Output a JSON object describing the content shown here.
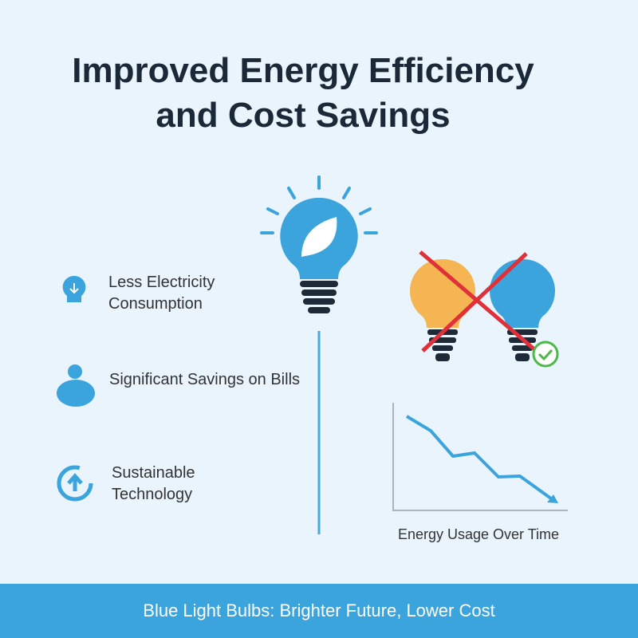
{
  "header": {
    "title_lines": [
      "Improved Energy Efficiency",
      "and Cost Savings"
    ]
  },
  "features": [
    {
      "label": "Less Electricity Consumption"
    },
    {
      "label": "Significant Savings on Bills"
    },
    {
      "label": "Sustainable Technology"
    }
  ],
  "chart": {
    "caption": "Energy Usage Over Time"
  },
  "footer": {
    "text": "Blue Light Bulbs: Brighter Future, Lower Cost"
  }
}
